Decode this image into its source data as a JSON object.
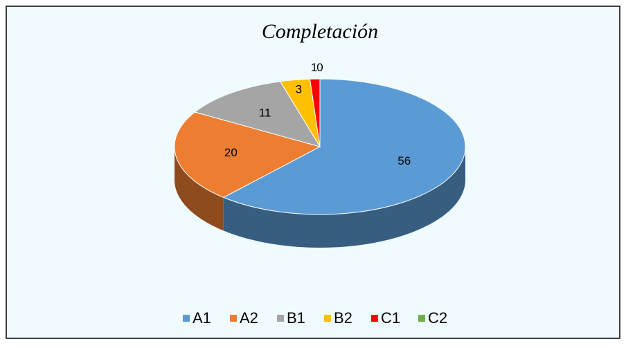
{
  "chart_data": {
    "type": "pie",
    "title": "Completación",
    "categories": [
      "A1",
      "A2",
      "B1",
      "B2",
      "C1",
      "C2"
    ],
    "values": [
      56,
      20,
      11,
      3,
      1,
      0
    ],
    "colors": [
      "#5b9bd5",
      "#ed7d31",
      "#a5a5a5",
      "#ffc000",
      "#ff0000",
      "#70ad47"
    ],
    "legend": "bottom"
  }
}
